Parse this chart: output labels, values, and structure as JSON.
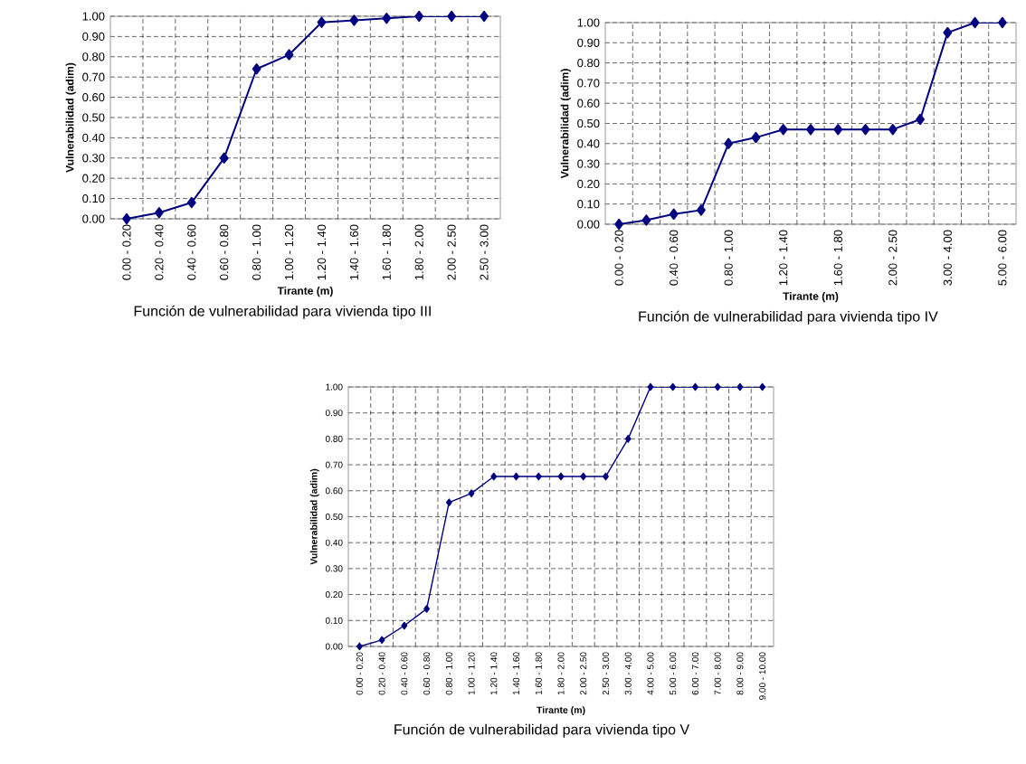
{
  "chart_data": [
    {
      "type": "line",
      "title": "Función de vulnerabilidad para vivienda tipo III",
      "xlabel": "Tirante (m)",
      "ylabel": "Vulnerabilidad (adim)",
      "categories": [
        "0.00 - 0.20",
        "0.20 - 0.40",
        "0.40 - 0.60",
        "0.60 - 0.80",
        "0.80 - 1.00",
        "1.00 - 1.20",
        "1.20 - 1.40",
        "1.40 - 1.60",
        "1.60 - 1.80",
        "1.80 - 2.00",
        "2.00 - 2.50",
        "2.50 - 3.00"
      ],
      "values": [
        0.0,
        0.03,
        0.08,
        0.3,
        0.74,
        0.81,
        0.97,
        0.98,
        0.99,
        1.0,
        1.0,
        1.0
      ],
      "color": "#000080",
      "marker": "diamond",
      "grid": true,
      "ylim": [
        0,
        1
      ],
      "yticks": [
        {
          "value": 0,
          "label": "0.00"
        },
        {
          "value": 0.1,
          "label": "0.10"
        },
        {
          "value": 0.2,
          "label": "0.20"
        },
        {
          "value": 0.3,
          "label": "0.30"
        },
        {
          "value": 0.4,
          "label": "0.40"
        },
        {
          "value": 0.5,
          "label": "0.50"
        },
        {
          "value": 0.6,
          "label": "0.60"
        },
        {
          "value": 0.7,
          "label": "0.70"
        },
        {
          "value": 0.8,
          "label": "0.80"
        },
        {
          "value": 0.9,
          "label": "0.90"
        },
        {
          "value": 1,
          "label": "1.00"
        }
      ]
    },
    {
      "type": "line",
      "title": "Función de vulnerabilidad para vivienda tipo IV",
      "xlabel": "Tirante (m)",
      "ylabel": "Vulnerabilidad (adim)",
      "categories": [
        "0.00 - 0.20",
        null,
        "0.40 - 0.60",
        null,
        "0.80 - 1.00",
        null,
        "1.20 - 1.40",
        null,
        "1.60 - 1.80",
        null,
        "2.00 - 2.50",
        null,
        "3.00 - 4.00",
        null,
        "5.00 - 6.00"
      ],
      "values": [
        0.0,
        0.02,
        0.05,
        0.07,
        0.4,
        0.43,
        0.47,
        0.47,
        0.47,
        0.47,
        0.47,
        0.52,
        0.95,
        1.0,
        1.0
      ],
      "color": "#000080",
      "marker": "diamond",
      "grid": true,
      "ylim": [
        0,
        1
      ],
      "yticks": [
        {
          "value": 0,
          "label": "0.00"
        },
        {
          "value": 0.1,
          "label": "0.10"
        },
        {
          "value": 0.2,
          "label": "0.20"
        },
        {
          "value": 0.3,
          "label": "0.30"
        },
        {
          "value": 0.4,
          "label": "0.40"
        },
        {
          "value": 0.5,
          "label": "0.50"
        },
        {
          "value": 0.6,
          "label": "0.60"
        },
        {
          "value": 0.7,
          "label": "0.70"
        },
        {
          "value": 0.8,
          "label": "0.80"
        },
        {
          "value": 0.9,
          "label": "0.90"
        },
        {
          "value": 1,
          "label": "1.00"
        }
      ]
    },
    {
      "type": "line",
      "title": "Función de vulnerabilidad para vivienda tipo V",
      "xlabel": "Tirante (m)",
      "ylabel": "Vulnerabilidad (adim)",
      "categories": [
        "0.00 - 0.20",
        "0.20 - 0.40",
        "0.40 - 0.60",
        "0.60 - 0.80",
        "0.80 - 1.00",
        "1.00 - 1.20",
        "1.20 - 1.40",
        "1.40 - 1.60",
        "1.60 - 1.80",
        "1.80 - 2.00",
        "2.00 - 2.50",
        "2.50 - 3.00",
        "3.00 - 4.00",
        "4.00 - 5.00",
        "5.00 - 6.00",
        "6.00 - 7.00",
        "7.00 - 8.00",
        "8.00 - 9.00",
        "9.00 - 10.00"
      ],
      "values": [
        0.0,
        0.025,
        0.08,
        0.145,
        0.555,
        0.59,
        0.655,
        0.655,
        0.655,
        0.655,
        0.655,
        0.655,
        0.8,
        1.0,
        1.0,
        1.0,
        1.0,
        1.0,
        1.0
      ],
      "color": "#000080",
      "marker": "diamond",
      "grid": true,
      "ylim": [
        0,
        1
      ],
      "yticks": [
        {
          "value": 0,
          "label": "0.00"
        },
        {
          "value": 0.1,
          "label": "0.10"
        },
        {
          "value": 0.2,
          "label": "0.20"
        },
        {
          "value": 0.3,
          "label": "0.30"
        },
        {
          "value": 0.4,
          "label": "0.40"
        },
        {
          "value": 0.5,
          "label": "0.50"
        },
        {
          "value": 0.6,
          "label": "0.60"
        },
        {
          "value": 0.7,
          "label": "0.70"
        },
        {
          "value": 0.8,
          "label": "0.80"
        },
        {
          "value": 0.9,
          "label": "0.90"
        },
        {
          "value": 1,
          "label": "1.00"
        }
      ]
    }
  ]
}
